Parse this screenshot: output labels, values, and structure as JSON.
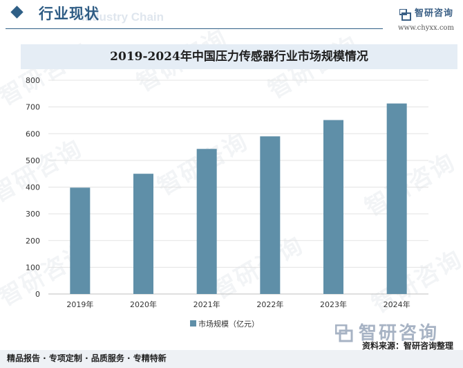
{
  "header": {
    "section_title": "行业现状",
    "section_subtitle": "Industry Chain",
    "logo_name": "智研咨询",
    "logo_url": "www.chyxx.com"
  },
  "chart_data": {
    "type": "bar",
    "title": "2019-2024年中国压力传感器行业市场规模情况",
    "categories": [
      "2019年",
      "2020年",
      "2021年",
      "2022年",
      "2023年",
      "2024年"
    ],
    "series": [
      {
        "name": "市场规模（亿元）",
        "values": [
          398,
          450,
          543,
          590,
          651,
          713
        ],
        "color": "#5f8fa8"
      }
    ],
    "ylim": [
      0,
      800
    ],
    "yticks": [
      "0",
      "100",
      "200",
      "300",
      "400",
      "500",
      "600",
      "700",
      "800"
    ],
    "grid": true,
    "legend_position": "bottom-center",
    "xlabel": "",
    "ylabel": ""
  },
  "watermark_text": "智研咨询",
  "footer": {
    "brand": "智研咨询",
    "source": "资料来源：智研咨询整理",
    "slogan": "精品报告 · 专项定制 · 品质服务 · 专精特新"
  }
}
